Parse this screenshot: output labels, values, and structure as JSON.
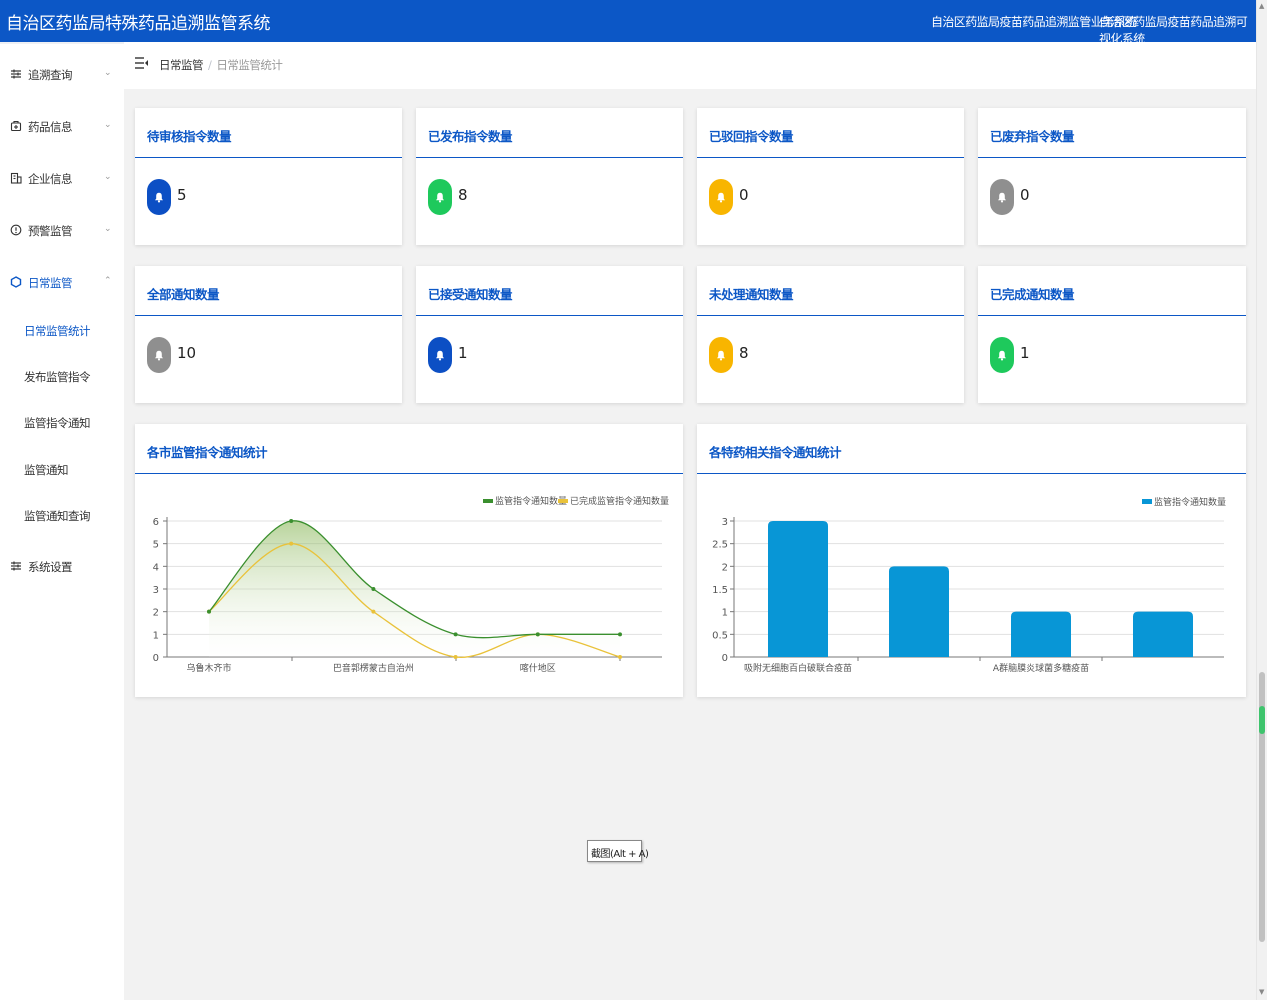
{
  "app": {
    "title": "自治区药监局特殊药品追溯监管系统",
    "links": [
      "自治区药监局疫苗药品追溯监管业务系统",
      "自治区药监局疫苗药品追溯可视化系统"
    ]
  },
  "sidebar": {
    "items": [
      {
        "label": "追溯查询",
        "icon": "sliders-icon",
        "chevron": "⌄"
      },
      {
        "label": "药品信息",
        "icon": "medicine-icon",
        "chevron": "⌄"
      },
      {
        "label": "企业信息",
        "icon": "building-icon",
        "chevron": "⌄"
      },
      {
        "label": "预警监管",
        "icon": "warning-icon",
        "chevron": "⌄"
      },
      {
        "label": "日常监管",
        "icon": "hexagon-icon",
        "chevron": "⌃",
        "open": true
      },
      {
        "label": "系统设置",
        "icon": "sliders-icon"
      }
    ],
    "subitems": [
      {
        "label": "日常监管统计",
        "active": true
      },
      {
        "label": "发布监管指令"
      },
      {
        "label": "监管指令通知"
      },
      {
        "label": "监管通知"
      },
      {
        "label": "监管通知查询"
      }
    ]
  },
  "breadcrumb": {
    "first": "日常监管",
    "separator": "/",
    "current": "日常监管统计"
  },
  "stats": [
    {
      "title": "待审核指令数量",
      "value": "5",
      "color": "#0c4fc4"
    },
    {
      "title": "已发布指令数量",
      "value": "8",
      "color": "#1ec95c"
    },
    {
      "title": "已驳回指令数量",
      "value": "0",
      "color": "#f8b500"
    },
    {
      "title": "已废弃指令数量",
      "value": "0",
      "color": "#8f8f8f"
    },
    {
      "title": "全部通知数量",
      "value": "10",
      "color": "#8f8f8f"
    },
    {
      "title": "已接受通知数量",
      "value": "1",
      "color": "#0c4fc4"
    },
    {
      "title": "未处理通知数量",
      "value": "8",
      "color": "#f8b500"
    },
    {
      "title": "已完成通知数量",
      "value": "1",
      "color": "#1ec95c"
    }
  ],
  "charts": {
    "line_title": "各市监管指令通知统计",
    "bar_title": "各特药相关指令通知统计"
  },
  "chart_data": [
    {
      "type": "line",
      "title": "各市监管指令通知统计",
      "x": [
        "乌鲁木齐市",
        "",
        "巴音郭楞蒙古自治州",
        "",
        "喀什地区",
        ""
      ],
      "xtick_labels": [
        "乌鲁木齐市",
        "巴音郭楞蒙古自治州",
        "喀什地区"
      ],
      "series": [
        {
          "name": "监管指令通知数量",
          "values": [
            2,
            6,
            3,
            1,
            1,
            1
          ],
          "color": "#3a8f2e"
        },
        {
          "name": "已完成监管指令通知数量",
          "values": [
            2,
            5,
            2,
            0,
            1,
            0
          ],
          "color": "#e9c23a"
        }
      ],
      "ylim": [
        0,
        6
      ],
      "yticks": [
        0,
        1,
        2,
        3,
        4,
        5,
        6
      ],
      "grid": true,
      "legend": "top-right"
    },
    {
      "type": "bar",
      "title": "各特药相关指令通知统计",
      "categories": [
        "吸附无细胞百白破联合疫苗",
        "",
        "A群脑膜炎球菌多糖疫苗",
        ""
      ],
      "xtick_labels": [
        "吸附无细胞百白破联合疫苗",
        "A群脑膜炎球菌多糖疫苗"
      ],
      "series": [
        {
          "name": "监管指令通知数量",
          "values": [
            3,
            2,
            1,
            1
          ],
          "color": "#0896d6"
        }
      ],
      "ylim": [
        0,
        3
      ],
      "yticks": [
        "0",
        "0.5",
        "1",
        "1.5",
        "2",
        "2.5",
        "3"
      ],
      "grid": true,
      "legend": "top-right"
    }
  ],
  "tooltip": "截图(Alt + A)"
}
